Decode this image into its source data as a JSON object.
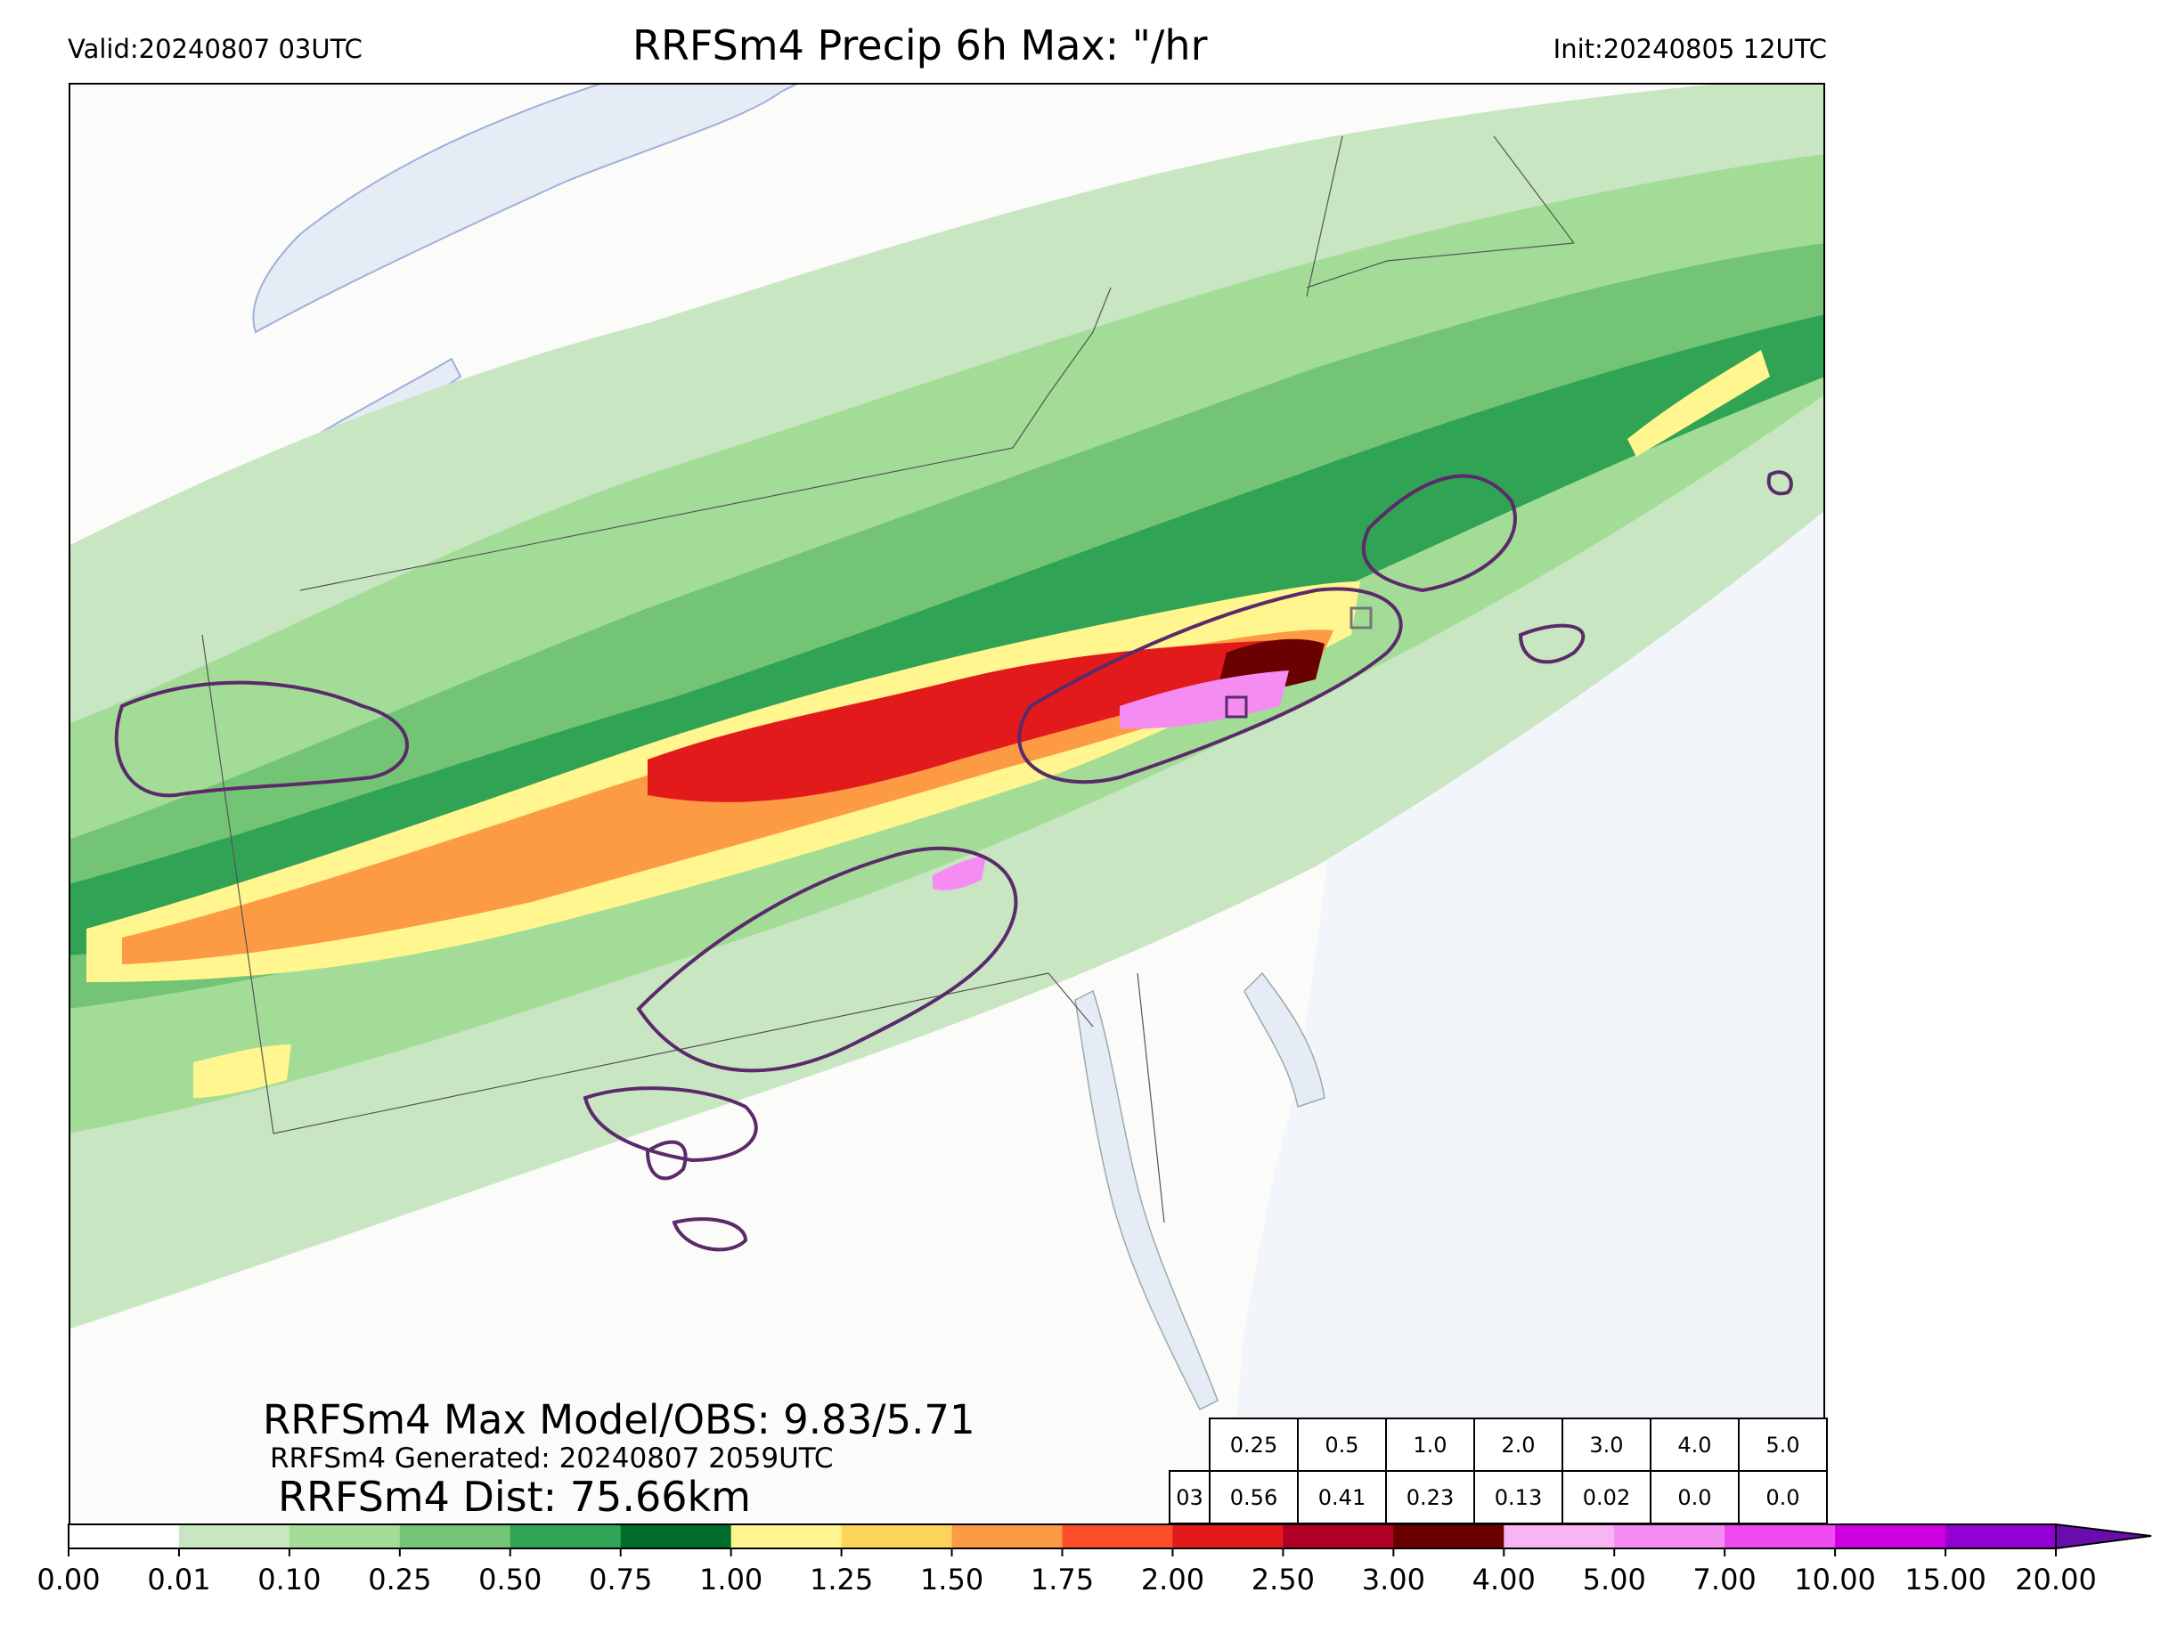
{
  "header": {
    "valid": "Valid:20240807 03UTC",
    "title": "RRFSm4 Precip 6h Max: \"/hr",
    "init": "Init:20240805 12UTC"
  },
  "overlay": {
    "max_line": "RRFSm4 Max Model/OBS: 9.83/5.71",
    "generated_line": "RRFSm4 Generated: 20240807 2059UTC",
    "dist_line": "RRFSm4 Dist: 75.66km"
  },
  "table": {
    "thresholds": [
      "0.25",
      "0.5",
      "1.0",
      "2.0",
      "3.0",
      "4.0",
      "5.0"
    ],
    "row_label": "03",
    "values": [
      "0.56",
      "0.41",
      "0.23",
      "0.13",
      "0.02",
      "0.0",
      "0.0"
    ]
  },
  "colorbar": {
    "ticks": [
      "0.00",
      "0.01",
      "0.10",
      "0.25",
      "0.50",
      "0.75",
      "1.00",
      "1.25",
      "1.50",
      "1.75",
      "2.00",
      "2.50",
      "3.00",
      "4.00",
      "5.00",
      "7.00",
      "10.00",
      "15.00",
      "20.00"
    ],
    "colors": [
      "#ffffff",
      "#c7e6c1",
      "#a3dc97",
      "#74c476",
      "#31a354",
      "#006d2c",
      "#fff68f",
      "#fdd35a",
      "#fd9a44",
      "#fc4e2a",
      "#e31a1c",
      "#b10026",
      "#6b0000",
      "#f9b4f4",
      "#f58cf2",
      "#f04bee",
      "#cc00e0",
      "#9400d3"
    ],
    "extend_color": "#6a0dad"
  },
  "map_colors": {
    "ocean": "#f2f6fb",
    "lake": "#e6ecf6",
    "land": "#fbfbf9",
    "observation_contour": "#5b2a6a"
  }
}
